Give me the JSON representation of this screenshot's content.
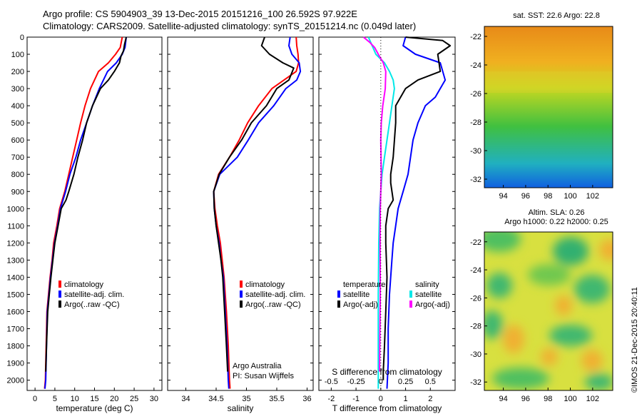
{
  "header": {
    "line1": "Argo profile: CS 5904903_39 13-Dec-2015 20151216_100 26.592S 97.922E",
    "line2": "Climatology: CARS2009. Satellite-adjusted climatology: synTS_20151214.nc (0.049d later)"
  },
  "side_label": "©IMOS 21-Dec-2015 20:40:11",
  "chart_data": [
    {
      "type": "line",
      "xlabel": "temperature (deg C)",
      "ylabel": "",
      "xlim": [
        -2,
        32
      ],
      "ylim": [
        2060,
        0
      ],
      "xticks": [
        0,
        5,
        10,
        15,
        20,
        25,
        30
      ],
      "yticks": [
        0,
        100,
        200,
        300,
        400,
        500,
        600,
        700,
        800,
        900,
        1000,
        1100,
        1200,
        1300,
        1400,
        1500,
        1600,
        1700,
        1800,
        1900,
        2000
      ],
      "legend": [
        "climatology",
        "satellite-adj. clim.",
        "Argo(..raw -QC)"
      ],
      "legend_position": "center-left",
      "series": [
        {
          "name": "climatology",
          "color": "#ff0000",
          "x": [
            22.0,
            21.5,
            20.3,
            18.5,
            16.0,
            14.0,
            12.6,
            11.5,
            10.5,
            9.5,
            8.5,
            7.5,
            6.2,
            5.5,
            4.7,
            4.3,
            3.8,
            3.4,
            3.0,
            2.8,
            2.6,
            2.4
          ],
          "y": [
            0,
            60,
            100,
            150,
            200,
            300,
            400,
            500,
            600,
            700,
            800,
            900,
            1000,
            1100,
            1200,
            1300,
            1400,
            1500,
            1600,
            1800,
            2000,
            2050
          ]
        },
        {
          "name": "satellite-adj. clim.",
          "color": "#0000ff",
          "x": [
            23.0,
            22.7,
            22.0,
            20.5,
            18.3,
            16.2,
            14.5,
            13.0,
            11.5,
            10.3,
            8.8,
            7.7,
            6.4,
            5.7,
            4.9,
            4.4,
            3.9,
            3.5,
            3.1,
            2.9,
            2.7,
            2.5
          ],
          "y": [
            0,
            60,
            100,
            150,
            200,
            300,
            400,
            500,
            600,
            700,
            800,
            900,
            1000,
            1100,
            1200,
            1300,
            1400,
            1500,
            1600,
            1800,
            2000,
            2050
          ]
        },
        {
          "name": "Argo(..raw -QC)",
          "color": "#000000",
          "x": [
            23.0,
            22.6,
            22.3,
            21.7,
            21.3,
            20.0,
            18.5,
            16.5,
            14.5,
            13.0,
            12.0,
            10.8,
            9.8,
            8.5,
            7.8,
            6.6,
            5.8,
            5.0,
            4.5,
            4.0,
            3.6,
            3.2,
            2.9,
            2.7
          ],
          "y": [
            0,
            40,
            80,
            110,
            150,
            200,
            250,
            300,
            400,
            500,
            600,
            700,
            800,
            900,
            950,
            1000,
            1100,
            1200,
            1300,
            1400,
            1500,
            1600,
            1800,
            1950
          ]
        }
      ]
    },
    {
      "type": "line",
      "xlabel": "salinity",
      "ylabel": "",
      "xlim": [
        33.7,
        36.1
      ],
      "ylim": [
        2060,
        0
      ],
      "xticks": [
        34,
        34.5,
        35,
        35.5,
        36
      ],
      "legend": [
        "climatology",
        "satellite-adj. clim.",
        "Argo(..raw -QC)"
      ],
      "legend_position": "center-right",
      "annotation": [
        "Argo Australia",
        "PI: Susan Wijffels"
      ],
      "series": [
        {
          "name": "climatology",
          "color": "#ff0000",
          "x": [
            35.82,
            35.83,
            35.85,
            35.86,
            35.82,
            35.62,
            35.42,
            35.2,
            35.02,
            34.88,
            34.72,
            34.54,
            34.46,
            34.48,
            34.52,
            34.57,
            34.6,
            34.63,
            34.67,
            34.7,
            34.72,
            34.73
          ],
          "y": [
            0,
            50,
            100,
            150,
            200,
            250,
            300,
            400,
            500,
            600,
            700,
            800,
            900,
            1000,
            1100,
            1200,
            1300,
            1400,
            1600,
            1800,
            2000,
            2050
          ]
        },
        {
          "name": "satellite-adj. clim.",
          "color": "#0000ff",
          "x": [
            35.72,
            35.7,
            35.75,
            35.87,
            35.89,
            35.83,
            35.65,
            35.45,
            35.2,
            35.03,
            34.85,
            34.56,
            34.46,
            34.47,
            34.5,
            34.55,
            34.58,
            34.62,
            34.65,
            34.68,
            34.7,
            34.71
          ],
          "y": [
            0,
            50,
            100,
            150,
            200,
            250,
            300,
            400,
            500,
            600,
            700,
            800,
            900,
            1000,
            1100,
            1200,
            1300,
            1400,
            1600,
            1800,
            2000,
            2050
          ]
        },
        {
          "name": "Argo(..raw -QC)",
          "color": "#000000",
          "x": [
            35.3,
            35.25,
            35.38,
            35.6,
            35.78,
            35.7,
            35.5,
            35.33,
            35.08,
            34.92,
            34.72,
            34.55,
            34.46,
            34.47,
            34.5,
            34.54,
            34.58,
            34.61,
            34.64,
            34.67,
            34.69
          ],
          "y": [
            0,
            50,
            100,
            150,
            180,
            250,
            300,
            400,
            500,
            600,
            700,
            800,
            900,
            1000,
            1100,
            1200,
            1300,
            1400,
            1600,
            1800,
            1950
          ]
        }
      ]
    },
    {
      "type": "line",
      "xlabel": "T difference from climatology",
      "x2label": "S difference from climatology",
      "xlim": [
        -2.5,
        3.0
      ],
      "ylim": [
        2060,
        0
      ],
      "xticks": [
        -2,
        -1,
        0,
        1,
        2
      ],
      "x2ticks": [
        -0.5,
        -0.25,
        0,
        0.25,
        0.5
      ],
      "zero_line": "dotted",
      "legend_titles": [
        "temperature",
        "salinity"
      ],
      "legend": [
        "satellite",
        "Argo(-adj)",
        "satellite",
        "Argo(-adj)"
      ],
      "legend_position": "center",
      "series": [
        {
          "name": "satellite",
          "color": "#0000ff",
          "x": [
            1.0,
            0.9,
            1.4,
            2.4,
            2.6,
            2.2,
            1.8,
            1.5,
            1.3,
            1.2,
            1.1,
            0.9,
            0.7,
            0.6,
            0.5,
            0.45,
            0.4,
            0.35,
            0.3,
            0.3,
            0.25
          ],
          "y": [
            0,
            50,
            100,
            150,
            250,
            350,
            400,
            500,
            600,
            700,
            800,
            900,
            1000,
            1100,
            1200,
            1300,
            1400,
            1500,
            1700,
            1900,
            2050
          ]
        },
        {
          "name": "Argo(-adj)",
          "color": "#000000",
          "x": [
            1.0,
            2.5,
            2.8,
            2.3,
            2.4,
            1.5,
            1.0,
            0.6,
            0.6,
            0.5,
            0.4,
            0.4,
            0.5,
            0.3,
            0.2,
            0.2,
            0.25,
            0.2,
            0.15,
            0.1,
            0.1
          ],
          "y": [
            0,
            20,
            50,
            100,
            200,
            250,
            300,
            400,
            500,
            700,
            800,
            850,
            950,
            1000,
            1100,
            1200,
            1400,
            1600,
            1800,
            1950,
            2000
          ]
        },
        {
          "name": "satellite",
          "color": "#00e8e8",
          "x": [
            -0.5,
            -0.35,
            -0.2,
            0.15,
            0.35,
            0.5,
            0.55,
            0.45,
            0.35,
            0.25,
            0.15,
            0.05,
            0.0,
            -0.05,
            -0.08,
            -0.1,
            -0.1,
            -0.1
          ],
          "y": [
            0,
            50,
            100,
            150,
            200,
            250,
            300,
            400,
            500,
            600,
            700,
            800,
            900,
            1000,
            1200,
            1500,
            1800,
            2050
          ]
        },
        {
          "name": "Argo(-adj)",
          "color": "#ff00ff",
          "x": [
            -0.7,
            -0.45,
            -0.25,
            -0.1,
            0.1,
            0.2,
            0.18,
            0.08,
            0.02,
            0.0,
            0.02,
            -0.02,
            -0.03,
            -0.02,
            -0.04,
            -0.05
          ],
          "y": [
            0,
            30,
            60,
            100,
            150,
            200,
            300,
            400,
            500,
            600,
            800,
            1000,
            1200,
            1500,
            1800,
            1950
          ]
        }
      ]
    },
    {
      "type": "heatmap",
      "title": "sat. SST: 22.6 Argo: 22.8",
      "xticks": [
        94,
        96,
        98,
        100,
        102
      ],
      "yticks": [
        -22,
        -24,
        -26,
        -28,
        -30,
        -32
      ],
      "colors_top_to_bottom": [
        "#e88a18",
        "#f0b020",
        "#c8d820",
        "#40c040",
        "#20b0c0",
        "#1060e0"
      ]
    },
    {
      "type": "heatmap",
      "title": "Altim. SLA: 0.26",
      "subtitle": "Argo h1000: 0.22 h2000: 0.25",
      "xticks": [
        94,
        96,
        98,
        100,
        102
      ],
      "yticks": [
        -22,
        -24,
        -26,
        -28,
        -30,
        -32
      ],
      "colors": [
        "#f0e040",
        "#c8e040",
        "#40c060",
        "#f0b030"
      ]
    }
  ]
}
